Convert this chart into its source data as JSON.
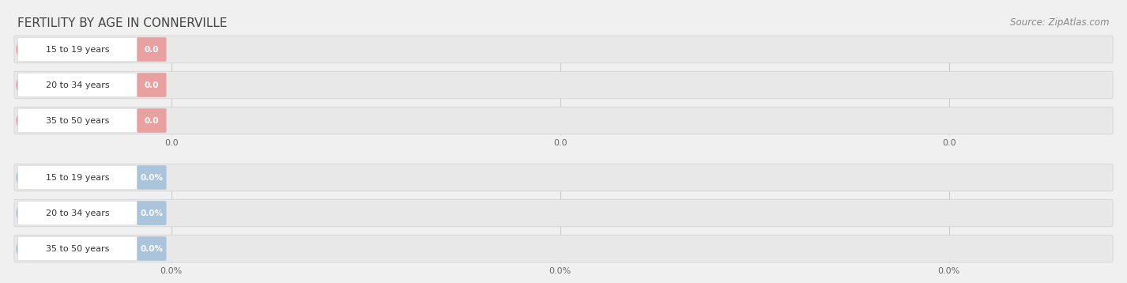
{
  "title": "FERTILITY BY AGE IN CONNERVILLE",
  "source": "Source: ZipAtlas.com",
  "background_color": "#f0f0f0",
  "top_section": {
    "categories": [
      "15 to 19 years",
      "20 to 34 years",
      "35 to 50 years"
    ],
    "values": [
      0.0,
      0.0,
      0.0
    ],
    "bar_color": "#e8a0a0",
    "x_tick_labels": [
      "0.0",
      "0.0",
      "0.0"
    ]
  },
  "bottom_section": {
    "categories": [
      "15 to 19 years",
      "20 to 34 years",
      "35 to 50 years"
    ],
    "values": [
      0.0,
      0.0,
      0.0
    ],
    "bar_color": "#aac4dc",
    "x_tick_labels": [
      "0.0%",
      "0.0%",
      "0.0%"
    ]
  }
}
